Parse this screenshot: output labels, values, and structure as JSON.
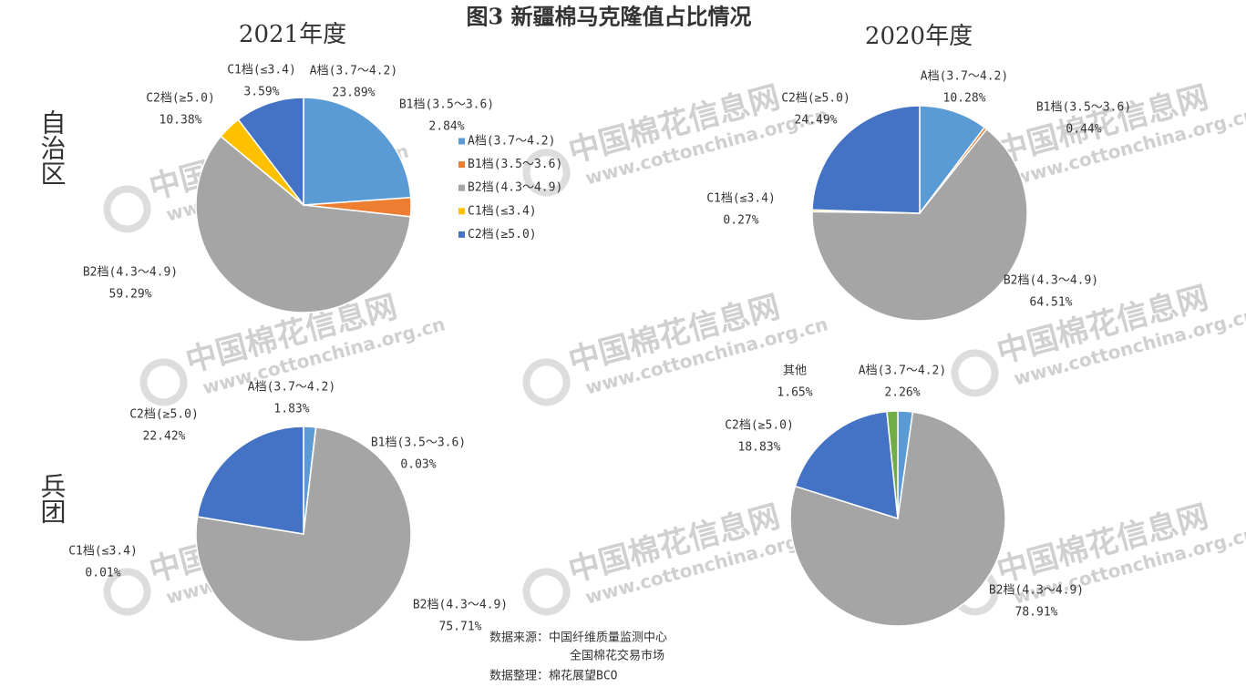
{
  "title": "图3 新疆棉马克隆值占比情况",
  "columns": [
    "2021年度",
    "2020年度"
  ],
  "rows": [
    "自治区",
    "兵团"
  ],
  "source": [
    "数据来源：中国纤维质量监测中心",
    "全国棉花交易市场",
    "数据整理：棉花展望BCO"
  ],
  "watermark": {
    "name": "中国棉花信息网",
    "url": "www.cottonchina.org.cn"
  },
  "chart_data": [
    {
      "type": "pie",
      "legend": true,
      "categories": [
        "A档(3.7～4.2)",
        "B1档(3.5～3.6)",
        "B2档(4.3～4.9)",
        "C1档(≤3.4)",
        "C2档(≥5.0)"
      ],
      "values": [
        23.89,
        2.84,
        59.29,
        3.59,
        10.38
      ],
      "value_labels": [
        "23.89%",
        "2.84%",
        "59.29%",
        "3.59%",
        "10.38%"
      ],
      "colors": [
        "#5b9bd5",
        "#ed7d31",
        "#a5a5a5",
        "#ffc000",
        "#4472c4"
      ]
    },
    {
      "type": "pie",
      "legend": false,
      "categories": [
        "A档(3.7～4.2)",
        "B1档(3.5～3.6)",
        "B2档(4.3～4.9)",
        "C1档(≤3.4)",
        "C2档(≥5.0)"
      ],
      "values": [
        10.28,
        0.44,
        64.51,
        0.27,
        24.49
      ],
      "value_labels": [
        "10.28%",
        "0.44%",
        "64.51%",
        "0.27%",
        "24.49%"
      ],
      "colors": [
        "#5b9bd5",
        "#ed7d31",
        "#a5a5a5",
        "#ffc000",
        "#4472c4"
      ]
    },
    {
      "type": "pie",
      "legend": false,
      "categories": [
        "A档(3.7～4.2)",
        "B1档(3.5～3.6)",
        "B2档(4.3～4.9)",
        "C1档(≤3.4)",
        "C2档(≥5.0)"
      ],
      "values": [
        1.83,
        0.03,
        75.71,
        0.01,
        22.42
      ],
      "value_labels": [
        "1.83%",
        "0.03%",
        "75.71%",
        "0.01%",
        "22.42%"
      ],
      "colors": [
        "#5b9bd5",
        "#ed7d31",
        "#a5a5a5",
        "#ffc000",
        "#4472c4"
      ]
    },
    {
      "type": "pie",
      "legend": false,
      "categories": [
        "A档(3.7～4.2)",
        "B2档(4.3～4.9)",
        "C2档(≥5.0)",
        "其他"
      ],
      "values": [
        2.26,
        78.91,
        18.83,
        1.65
      ],
      "value_labels": [
        "2.26%",
        "78.91%",
        "18.83%",
        "1.65%"
      ],
      "colors": [
        "#5b9bd5",
        "#a5a5a5",
        "#4472c4",
        "#70ad47"
      ]
    }
  ]
}
